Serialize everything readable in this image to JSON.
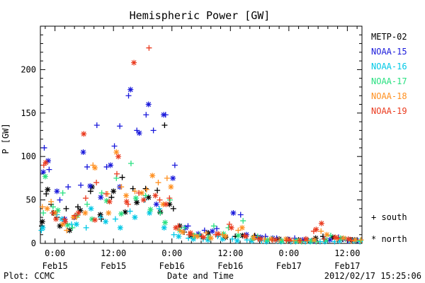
{
  "chart_data": {
    "type": "scatter",
    "title": "Hemispheric Power [GW]",
    "xlabel": "Date and Time",
    "ylabel": "P [GW]",
    "ylim": [
      0,
      250
    ],
    "yticks": [
      0,
      50,
      100,
      150,
      200
    ],
    "xlim": [
      -3,
      63
    ],
    "x_unit": "hours from 2012-02-15 00:00 UT",
    "xticks": [
      {
        "x": 0,
        "time": "0:00",
        "date": "Feb15"
      },
      {
        "x": 12,
        "time": "12:00",
        "date": "Feb15"
      },
      {
        "x": 24,
        "time": "0:00",
        "date": "Feb16"
      },
      {
        "x": 36,
        "time": "12:00",
        "date": "Feb16"
      },
      {
        "x": 48,
        "time": "0:00",
        "date": "Feb17"
      },
      {
        "x": 60,
        "time": "12:00",
        "date": "Feb17"
      }
    ],
    "marker_legend": [
      {
        "label": "+ south",
        "marker": "plus"
      },
      {
        "label": "* north",
        "marker": "asterisk"
      }
    ],
    "series": [
      {
        "name": "METP-02",
        "color": "#000000",
        "south": [
          [
            -2.7,
            20
          ],
          [
            -1.8,
            57
          ],
          [
            -0.8,
            45
          ],
          [
            0.4,
            30
          ],
          [
            2.3,
            40
          ],
          [
            4.7,
            42
          ],
          [
            7.3,
            60
          ],
          [
            9.5,
            28
          ],
          [
            11.6,
            53
          ],
          [
            13.8,
            76
          ],
          [
            16,
            63
          ],
          [
            18.6,
            63
          ],
          [
            21,
            61
          ],
          [
            22.5,
            136
          ],
          [
            24.3,
            40
          ],
          [
            26.5,
            13
          ],
          [
            30,
            8
          ],
          [
            33.5,
            10
          ],
          [
            37,
            8
          ],
          [
            41,
            9
          ],
          [
            44.5,
            5
          ],
          [
            48,
            4
          ],
          [
            52,
            3
          ],
          [
            55,
            8
          ],
          [
            59,
            5
          ],
          [
            62,
            4
          ]
        ],
        "north": [
          [
            -2.6,
            25
          ],
          [
            -1.5,
            62
          ],
          [
            -0.3,
            35
          ],
          [
            1,
            20
          ],
          [
            3,
            15
          ],
          [
            5.2,
            38
          ],
          [
            7.6,
            65
          ],
          [
            9.3,
            33
          ],
          [
            12,
            60
          ],
          [
            14.4,
            36
          ],
          [
            16.8,
            47
          ],
          [
            19.2,
            53
          ],
          [
            21.6,
            36
          ],
          [
            23.5,
            45
          ],
          [
            25.6,
            20
          ],
          [
            28,
            9
          ],
          [
            31.5,
            12
          ],
          [
            35,
            7
          ],
          [
            38.5,
            9
          ],
          [
            42,
            6
          ],
          [
            46,
            5
          ],
          [
            50,
            4
          ],
          [
            53.5,
            6
          ],
          [
            57,
            7
          ],
          [
            61,
            4
          ]
        ]
      },
      {
        "name": "NOAA-15",
        "color": "#1a1adb",
        "south": [
          [
            -2.2,
            110
          ],
          [
            -1.2,
            85
          ],
          [
            1,
            50
          ],
          [
            2.7,
            65
          ],
          [
            5.3,
            67
          ],
          [
            6.6,
            88
          ],
          [
            8.6,
            136
          ],
          [
            10.6,
            88
          ],
          [
            12.2,
            112
          ],
          [
            13.3,
            135
          ],
          [
            15.1,
            170
          ],
          [
            16.8,
            130
          ],
          [
            18.7,
            148
          ],
          [
            20.2,
            130
          ],
          [
            22.7,
            148
          ],
          [
            24.6,
            90
          ],
          [
            27.3,
            20
          ],
          [
            30.7,
            15
          ],
          [
            33.2,
            17
          ],
          [
            38.1,
            33
          ],
          [
            41.2,
            7
          ],
          [
            43.2,
            8
          ],
          [
            45.5,
            6
          ],
          [
            49.2,
            6
          ],
          [
            51.5,
            5
          ],
          [
            53.3,
            3
          ],
          [
            55.3,
            5
          ],
          [
            58.2,
            7
          ],
          [
            60.1,
            3
          ],
          [
            62.2,
            3
          ]
        ],
        "north": [
          [
            -2.4,
            82
          ],
          [
            -1.4,
            95
          ],
          [
            0.4,
            60
          ],
          [
            2,
            28
          ],
          [
            4,
            30
          ],
          [
            5.8,
            105
          ],
          [
            7.2,
            66
          ],
          [
            9.4,
            53
          ],
          [
            11.4,
            90
          ],
          [
            13.3,
            65
          ],
          [
            15.5,
            177
          ],
          [
            17.3,
            127
          ],
          [
            19.2,
            160
          ],
          [
            20.8,
            45
          ],
          [
            22.3,
            148
          ],
          [
            24.2,
            75
          ],
          [
            26.8,
            18
          ],
          [
            29.4,
            11
          ],
          [
            32.3,
            14
          ],
          [
            36.6,
            35
          ],
          [
            39.3,
            10
          ],
          [
            42.2,
            7
          ],
          [
            44.7,
            6
          ],
          [
            47.8,
            5
          ],
          [
            50.8,
            4
          ],
          [
            52.7,
            3
          ],
          [
            56.4,
            4
          ],
          [
            59.2,
            5
          ],
          [
            61.5,
            4
          ]
        ]
      },
      {
        "name": "NOAA-16",
        "color": "#00c8e6",
        "south": [
          [
            -2.8,
            15
          ],
          [
            0.4,
            33
          ],
          [
            3.4,
            22
          ],
          [
            6.4,
            18
          ],
          [
            9.4,
            30
          ],
          [
            12.4,
            28
          ],
          [
            15.4,
            37
          ],
          [
            18.4,
            50
          ],
          [
            21.4,
            40
          ],
          [
            24.4,
            10
          ],
          [
            27.4,
            6
          ],
          [
            30.4,
            5
          ],
          [
            33.4,
            8
          ],
          [
            36.4,
            5
          ],
          [
            39.4,
            4
          ],
          [
            42.4,
            3
          ],
          [
            45.4,
            3
          ],
          [
            48.4,
            2
          ],
          [
            51.4,
            2
          ],
          [
            54.4,
            2
          ],
          [
            57.4,
            2
          ],
          [
            60.4,
            4
          ],
          [
            62.6,
            2
          ]
        ],
        "north": [
          [
            -2.5,
            18
          ],
          [
            1.4,
            28
          ],
          [
            4.4,
            22
          ],
          [
            7.4,
            40
          ],
          [
            10.4,
            25
          ],
          [
            13.4,
            18
          ],
          [
            16.4,
            30
          ],
          [
            19.4,
            35
          ],
          [
            22.4,
            18
          ],
          [
            25.4,
            8
          ],
          [
            28.4,
            5
          ],
          [
            31.4,
            4
          ],
          [
            34.4,
            5
          ],
          [
            37.4,
            3
          ],
          [
            40.4,
            3
          ],
          [
            43.4,
            2
          ],
          [
            46.4,
            2
          ],
          [
            49.4,
            2
          ],
          [
            52.4,
            2
          ],
          [
            55.4,
            2
          ],
          [
            58.4,
            3
          ],
          [
            61.4,
            3
          ]
        ]
      },
      {
        "name": "NOAA-17",
        "color": "#28e080",
        "south": [
          [
            -2.4,
            35
          ],
          [
            -0.4,
            42
          ],
          [
            1.6,
            58
          ],
          [
            3.6,
            18
          ],
          [
            6.6,
            45
          ],
          [
            9.6,
            58
          ],
          [
            12.6,
            75
          ],
          [
            15.6,
            92
          ],
          [
            18.6,
            55
          ],
          [
            21.6,
            35
          ],
          [
            23.6,
            50
          ],
          [
            26.6,
            18
          ],
          [
            29.6,
            10
          ],
          [
            32.6,
            20
          ],
          [
            35.6,
            18
          ],
          [
            38.6,
            26
          ],
          [
            41.6,
            8
          ],
          [
            44.6,
            5
          ],
          [
            47.6,
            3
          ],
          [
            50.6,
            2
          ],
          [
            53.6,
            2
          ],
          [
            56.6,
            9
          ],
          [
            59.6,
            5
          ],
          [
            62.6,
            3
          ]
        ],
        "north": [
          [
            -2,
            77
          ],
          [
            0.6,
            38
          ],
          [
            2.6,
            21
          ],
          [
            4.6,
            32
          ],
          [
            7.6,
            28
          ],
          [
            10.6,
            49
          ],
          [
            13.6,
            34
          ],
          [
            16.6,
            52
          ],
          [
            19.6,
            39
          ],
          [
            22.6,
            24
          ],
          [
            25.6,
            15
          ],
          [
            28.6,
            9
          ],
          [
            31.6,
            7
          ],
          [
            34.6,
            11
          ],
          [
            37.6,
            9
          ],
          [
            40.6,
            6
          ],
          [
            43.6,
            4
          ],
          [
            46.6,
            3
          ],
          [
            49.6,
            3
          ],
          [
            52.6,
            3
          ],
          [
            55.6,
            4
          ],
          [
            58.6,
            6
          ],
          [
            61.6,
            4
          ]
        ]
      },
      {
        "name": "NOAA-18",
        "color": "#ff9020",
        "south": [
          [
            -2.6,
            42
          ],
          [
            -0.8,
            48
          ],
          [
            2.4,
            15
          ],
          [
            4.4,
            30
          ],
          [
            7.8,
            90
          ],
          [
            10.8,
            57
          ],
          [
            13.6,
            65
          ],
          [
            16.4,
            60
          ],
          [
            18.8,
            62
          ],
          [
            21.2,
            70
          ],
          [
            23,
            75
          ],
          [
            25.6,
            15
          ],
          [
            28.4,
            9
          ],
          [
            31,
            12
          ],
          [
            34.4,
            10
          ],
          [
            37.6,
            15
          ],
          [
            40.8,
            8
          ],
          [
            43,
            5
          ],
          [
            46,
            4
          ],
          [
            49,
            3
          ],
          [
            51.8,
            3
          ],
          [
            54.6,
            14
          ],
          [
            57.8,
            5
          ],
          [
            60.8,
            3
          ],
          [
            62.8,
            4
          ]
        ],
        "north": [
          [
            -1.6,
            40
          ],
          [
            0,
            35
          ],
          [
            1.6,
            22
          ],
          [
            3.8,
            30
          ],
          [
            6.2,
            35
          ],
          [
            8.2,
            87
          ],
          [
            11,
            35
          ],
          [
            12.6,
            105
          ],
          [
            14.6,
            55
          ],
          [
            17.8,
            58
          ],
          [
            20,
            78
          ],
          [
            22.2,
            45
          ],
          [
            23.8,
            65
          ],
          [
            26.2,
            13
          ],
          [
            29.2,
            8
          ],
          [
            32,
            6
          ],
          [
            35,
            8
          ],
          [
            38.4,
            18
          ],
          [
            40.8,
            6
          ],
          [
            44.4,
            5
          ],
          [
            47.4,
            5
          ],
          [
            50.2,
            3
          ],
          [
            53.2,
            4
          ],
          [
            55.8,
            10
          ],
          [
            59.2,
            6
          ],
          [
            61.6,
            4
          ]
        ]
      },
      {
        "name": "NOAA-19",
        "color": "#ea3a1e",
        "south": [
          [
            -2.3,
            90
          ],
          [
            -0.5,
            35
          ],
          [
            1.9,
            28
          ],
          [
            4.1,
            32
          ],
          [
            6.3,
            52
          ],
          [
            8.5,
            70
          ],
          [
            10.5,
            57
          ],
          [
            12.7,
            80
          ],
          [
            15,
            45
          ],
          [
            17.2,
            58
          ],
          [
            19.3,
            225
          ],
          [
            21.5,
            50
          ],
          [
            23.5,
            52
          ],
          [
            25.3,
            20
          ],
          [
            27.5,
            10
          ],
          [
            30.2,
            8
          ],
          [
            33,
            10
          ],
          [
            35.8,
            22
          ],
          [
            38.9,
            9
          ],
          [
            41.7,
            5
          ],
          [
            44.6,
            4
          ],
          [
            47.5,
            3
          ],
          [
            50.3,
            3
          ],
          [
            53.1,
            14
          ],
          [
            55.2,
            5
          ],
          [
            58.1,
            6
          ],
          [
            60.8,
            4
          ]
        ],
        "north": [
          [
            -1.9,
            93
          ],
          [
            0.2,
            28
          ],
          [
            2.1,
            25
          ],
          [
            4.8,
            35
          ],
          [
            5.9,
            126
          ],
          [
            8.2,
            27
          ],
          [
            11.2,
            48
          ],
          [
            13,
            100
          ],
          [
            14.7,
            48
          ],
          [
            16.2,
            208
          ],
          [
            18.2,
            50
          ],
          [
            20.6,
            55
          ],
          [
            22.8,
            45
          ],
          [
            24.8,
            18
          ],
          [
            27.8,
            12
          ],
          [
            30.5,
            7
          ],
          [
            33.5,
            11
          ],
          [
            36.2,
            18
          ],
          [
            39.2,
            8
          ],
          [
            42.2,
            5
          ],
          [
            45.3,
            4
          ],
          [
            48.2,
            4
          ],
          [
            51.5,
            5
          ],
          [
            53.6,
            16
          ],
          [
            54.7,
            23
          ],
          [
            57.5,
            7
          ],
          [
            60.2,
            5
          ]
        ]
      }
    ]
  },
  "footer": {
    "plot_credit": "Plot: CCMC",
    "timestamp": "2012/02/17 15:25:06"
  }
}
